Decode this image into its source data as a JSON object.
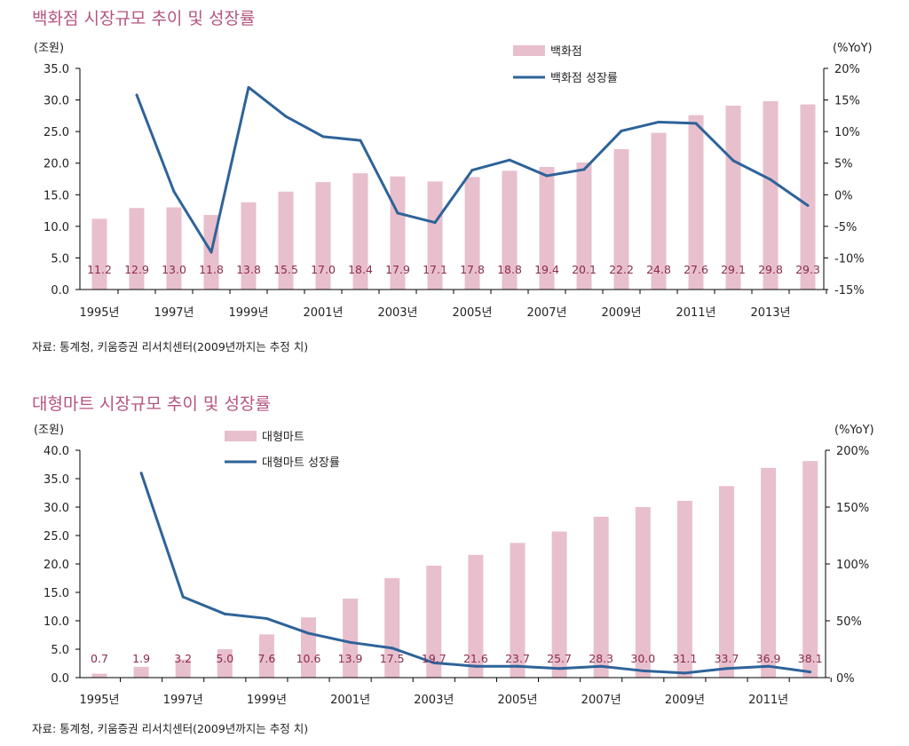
{
  "chart_data": [
    {
      "type": "bar+line",
      "title": "백화점 시장규모 추이 및 성장률",
      "ylabel_left": "(조원)",
      "ylabel_right": "(%YoY)",
      "ylim_left": [
        0,
        35
      ],
      "ylim_right": [
        -15,
        20
      ],
      "yticks_left": [
        "0.0",
        "5.0",
        "10.0",
        "15.0",
        "20.0",
        "25.0",
        "30.0",
        "35.0"
      ],
      "yticks_right": [
        "-15%",
        "-10%",
        "-5%",
        "0%",
        "5%",
        "10%",
        "15%",
        "20%"
      ],
      "categories": [
        1995,
        1996,
        1997,
        1998,
        1999,
        2000,
        2001,
        2002,
        2003,
        2004,
        2005,
        2006,
        2007,
        2008,
        2009,
        2010,
        2011,
        2012,
        2013,
        2014
      ],
      "xtick_labels": [
        "1995년",
        "1997년",
        "1999년",
        "2001년",
        "2003년",
        "2005년",
        "2007년",
        "2009년",
        "2011년",
        "2013년"
      ],
      "series": [
        {
          "name": "백화점",
          "type": "bar",
          "color": "#e8bfcd",
          "values": [
            11.2,
            12.9,
            13.0,
            11.8,
            13.8,
            15.5,
            17.0,
            18.4,
            17.9,
            17.1,
            17.8,
            18.8,
            19.4,
            20.1,
            22.2,
            24.8,
            27.6,
            29.1,
            29.8,
            29.3
          ]
        },
        {
          "name": "백화점 성장률",
          "type": "line",
          "color": "#2e6399",
          "values": [
            null,
            15.8,
            0.5,
            -9.1,
            17.0,
            12.4,
            9.2,
            8.6,
            -2.9,
            -4.4,
            3.9,
            5.5,
            3.0,
            4.0,
            10.1,
            11.5,
            11.3,
            5.4,
            2.4,
            -1.7
          ]
        }
      ],
      "source": "자료: 통계청, 키움증권 리서치센터(2009년까지는 추정 치)"
    },
    {
      "type": "bar+line",
      "title": "대형마트 시장규모 추이 및 성장률",
      "ylabel_left": "(조원)",
      "ylabel_right": "(%YoY)",
      "ylim_left": [
        0,
        40
      ],
      "ylim_right": [
        0,
        200
      ],
      "yticks_left": [
        "0.0",
        "5.0",
        "10.0",
        "15.0",
        "20.0",
        "25.0",
        "30.0",
        "35.0",
        "40.0"
      ],
      "yticks_right": [
        "0%",
        "50%",
        "100%",
        "150%",
        "200%"
      ],
      "categories": [
        1995,
        1996,
        1997,
        1998,
        1999,
        2000,
        2001,
        2002,
        2003,
        2004,
        2005,
        2006,
        2007,
        2008,
        2009,
        2010,
        2011,
        2012
      ],
      "xtick_labels": [
        "1995년",
        "1997년",
        "1999년",
        "2001년",
        "2003년",
        "2005년",
        "2007년",
        "2009년",
        "2011년"
      ],
      "series": [
        {
          "name": "대형마트",
          "type": "bar",
          "color": "#e8bfcd",
          "values": [
            0.7,
            1.9,
            3.2,
            5.0,
            7.6,
            10.6,
            13.9,
            17.5,
            19.7,
            21.6,
            23.7,
            25.7,
            28.3,
            30.0,
            31.1,
            33.7,
            36.9,
            38.1
          ]
        },
        {
          "name": "대형마트 성장률",
          "type": "line",
          "color": "#2e6399",
          "values": [
            null,
            180,
            71,
            56,
            52,
            39,
            31,
            26,
            13,
            10,
            10,
            8,
            10,
            6,
            4,
            8,
            10,
            5
          ]
        }
      ],
      "source": "자료: 통계청, 키움증권 리서치센터(2009년까지는 추정 치)"
    }
  ]
}
